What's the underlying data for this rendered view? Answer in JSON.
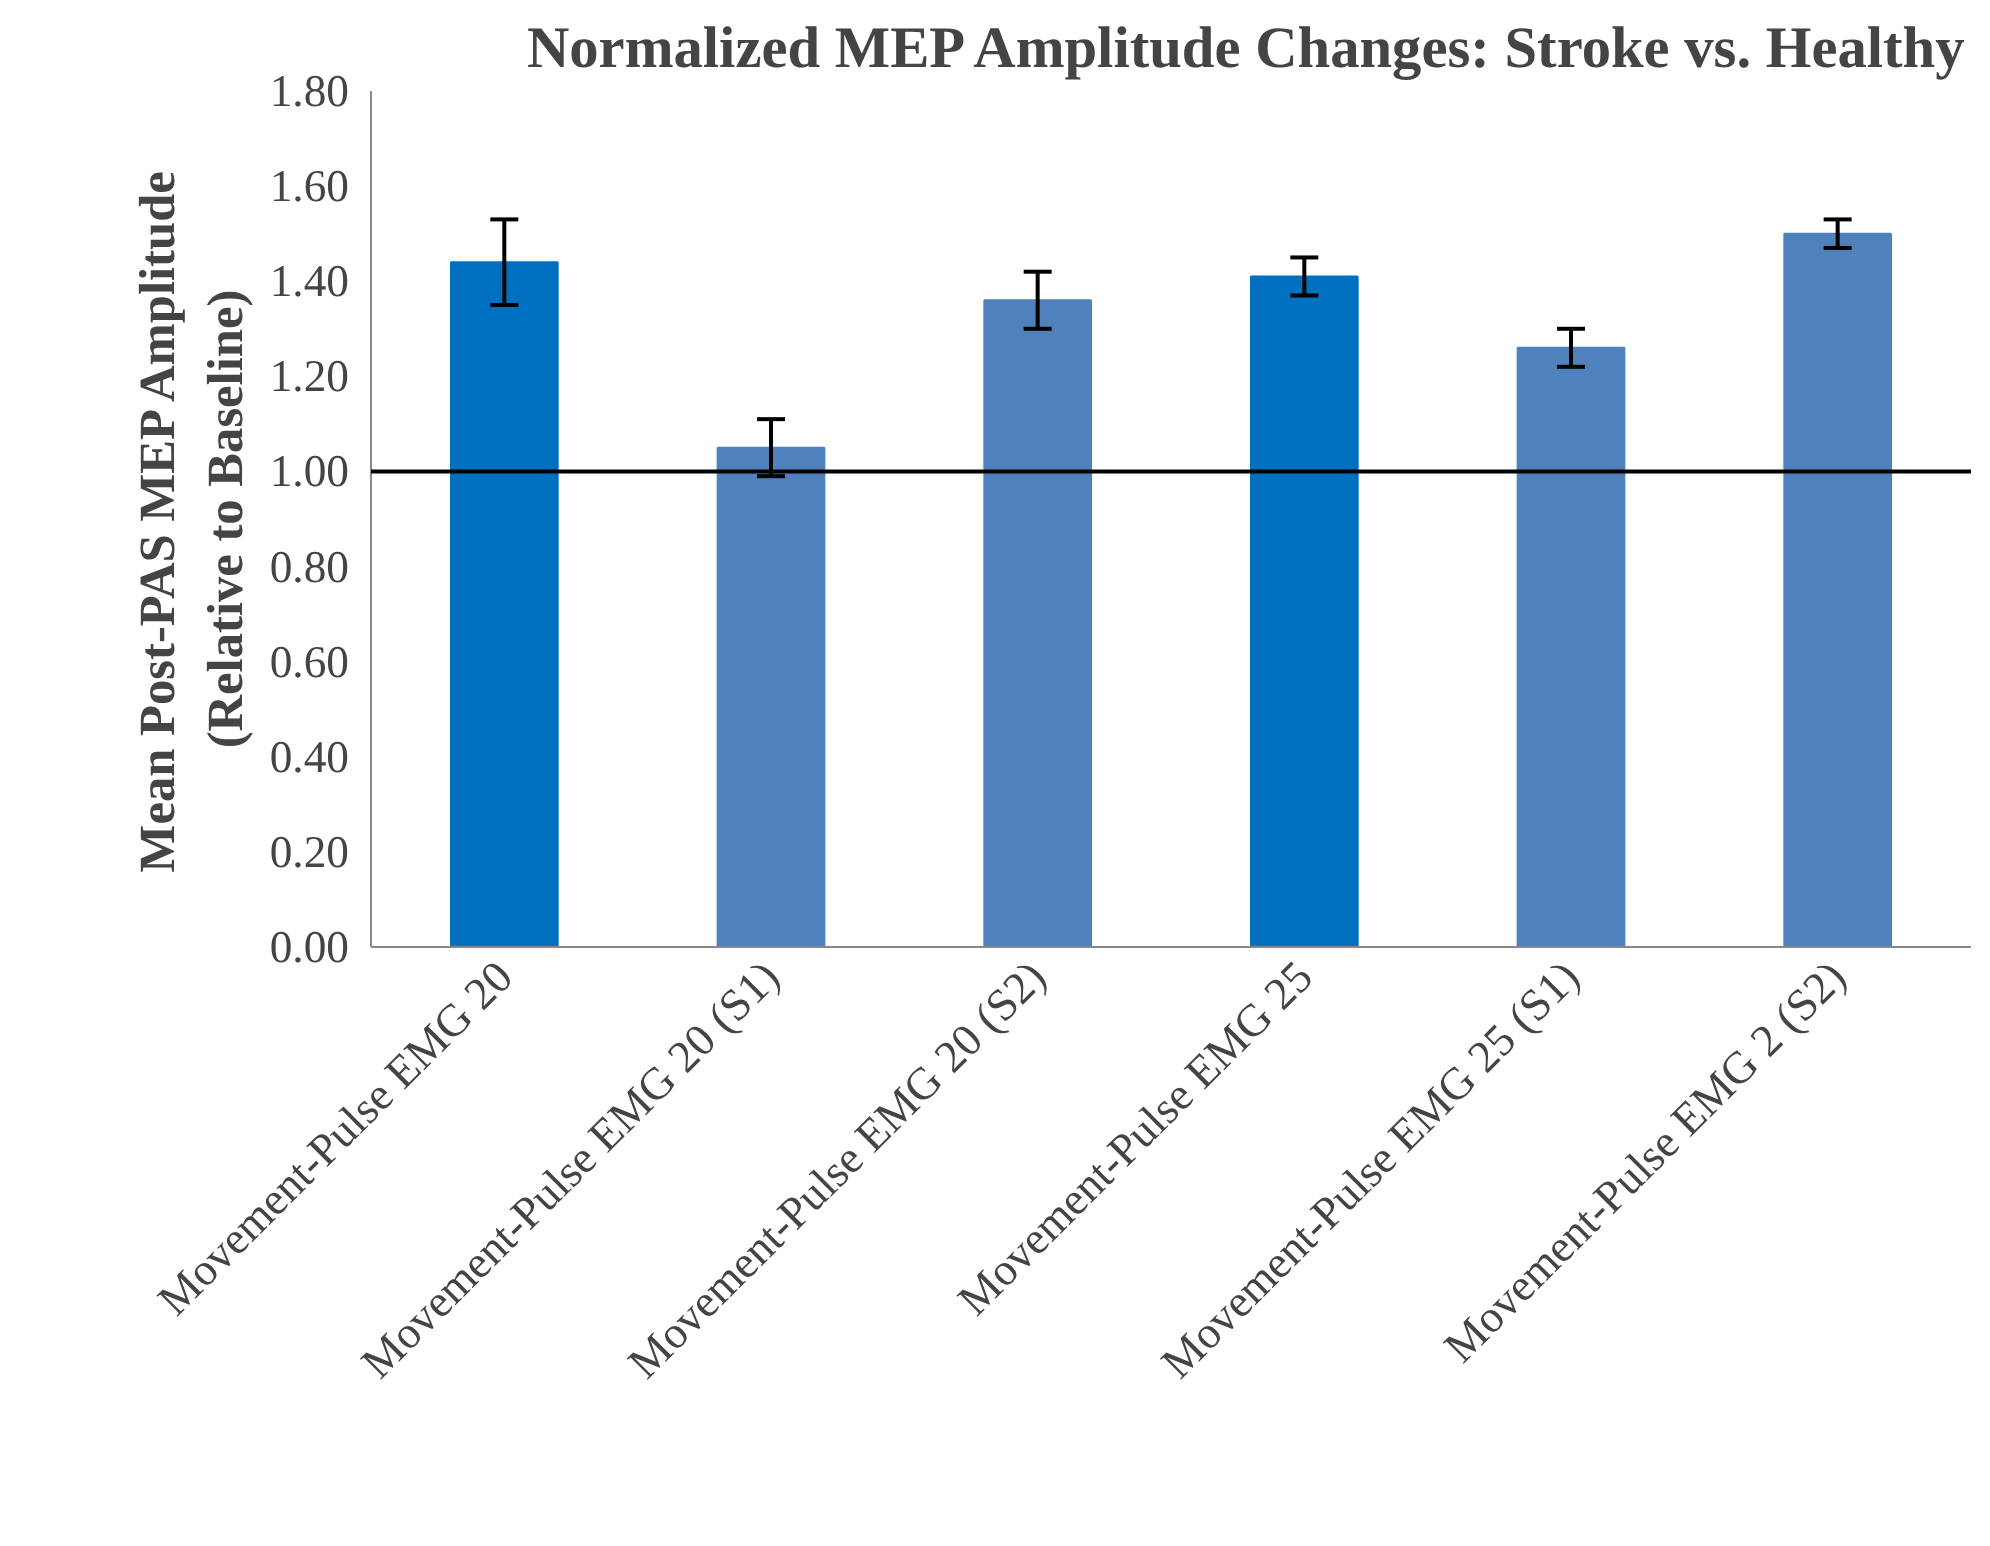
{
  "chart_data": {
    "type": "bar",
    "title": "Normalized MEP Amplitude Changes: Stroke vs. Healthy",
    "ylabel": "Mean Post-PAS MEP Amplitude\n(Relative to Baseline)",
    "categories": [
      "Movement-Pulse EMG 20",
      "Movement-Pulse EMG 20 (S1)",
      "Movement-Pulse EMG 20 (S2)",
      "Movement-Pulse EMG 25",
      "Movement-Pulse EMG 25 (S1)",
      "Movement-Pulse EMG 2 (S2)"
    ],
    "values": [
      1.44,
      1.05,
      1.36,
      1.41,
      1.26,
      1.5
    ],
    "errors": [
      0.09,
      0.06,
      0.06,
      0.04,
      0.04,
      0.03
    ],
    "colors": [
      "#0070c0",
      "#4f81bd",
      "#4f81bd",
      "#0070c0",
      "#4f81bd",
      "#4f81bd"
    ],
    "ylim": [
      0,
      1.8
    ],
    "yticks": [
      {
        "value": 0,
        "label": "0.00"
      },
      {
        "value": 0.2,
        "label": "0.20"
      },
      {
        "value": 0.4,
        "label": "0.40"
      },
      {
        "value": 0.6,
        "label": "0.60"
      },
      {
        "value": 0.8,
        "label": "0.80"
      },
      {
        "value": 1.0,
        "label": "1.00"
      },
      {
        "value": 1.2,
        "label": "1.20"
      },
      {
        "value": 1.4,
        "label": "1.40"
      },
      {
        "value": 1.6,
        "label": "1.60"
      },
      {
        "value": 1.8,
        "label": "1.80"
      }
    ],
    "ref_lines": [
      {
        "axis": "y",
        "value": 1.0,
        "color": "#000000"
      }
    ],
    "grid": false
  }
}
